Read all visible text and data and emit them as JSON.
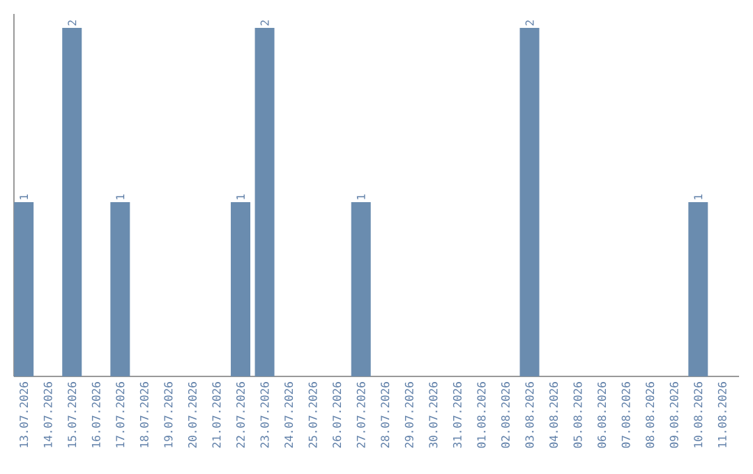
{
  "chart_data": {
    "type": "bar",
    "categories": [
      "13.07.2026",
      "14.07.2026",
      "15.07.2026",
      "16.07.2026",
      "17.07.2026",
      "18.07.2026",
      "19.07.2026",
      "20.07.2026",
      "21.07.2026",
      "22.07.2026",
      "23.07.2026",
      "24.07.2026",
      "25.07.2026",
      "26.07.2026",
      "27.07.2026",
      "28.07.2026",
      "29.07.2026",
      "30.07.2026",
      "31.07.2026",
      "01.08.2026",
      "02.08.2026",
      "03.08.2026",
      "04.08.2026",
      "05.08.2026",
      "06.08.2026",
      "07.08.2026",
      "08.08.2026",
      "09.08.2026",
      "10.08.2026",
      "11.08.2026"
    ],
    "values": [
      1,
      0,
      2,
      0,
      1,
      0,
      0,
      0,
      0,
      1,
      2,
      0,
      0,
      0,
      1,
      0,
      0,
      0,
      0,
      0,
      0,
      2,
      0,
      0,
      0,
      0,
      0,
      0,
      1,
      0
    ],
    "value_labels": [
      "1",
      null,
      "2",
      null,
      "1",
      null,
      null,
      null,
      null,
      "1",
      "2",
      null,
      null,
      null,
      "1",
      null,
      null,
      null,
      null,
      null,
      null,
      "2",
      null,
      null,
      null,
      null,
      null,
      null,
      "1",
      null
    ],
    "color": "#6a8caf",
    "tick_labels": "x"
  }
}
